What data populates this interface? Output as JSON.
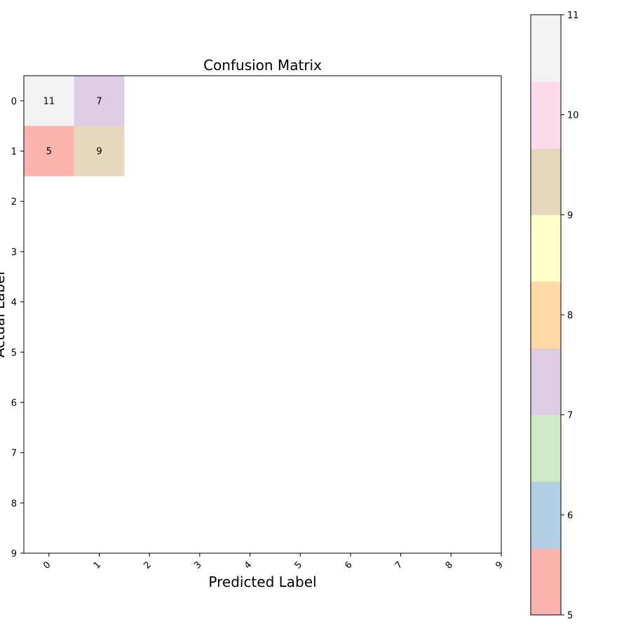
{
  "chart_data": {
    "type": "heatmap",
    "title": "Confusion Matrix",
    "xlabel": "Predicted Label",
    "ylabel": "Actual Label",
    "x_ticks": [
      "0",
      "1",
      "2",
      "3",
      "4",
      "5",
      "6",
      "7",
      "8",
      "9"
    ],
    "y_ticks": [
      "0",
      "1",
      "2",
      "3",
      "4",
      "5",
      "6",
      "7",
      "8",
      "9"
    ],
    "xlim": [
      0,
      9
    ],
    "ylim": [
      0,
      9
    ],
    "x_tick_rotation_deg": 45,
    "cells": [
      {
        "row": 0,
        "col": 0,
        "value": 11,
        "label": "11"
      },
      {
        "row": 0,
        "col": 1,
        "value": 7,
        "label": "7"
      },
      {
        "row": 1,
        "col": 0,
        "value": 5,
        "label": "5"
      },
      {
        "row": 1,
        "col": 1,
        "value": 9,
        "label": "9"
      }
    ],
    "colorbar": {
      "min": 5,
      "max": 11,
      "ticks": [
        "5",
        "6",
        "7",
        "8",
        "9",
        "10",
        "11"
      ],
      "colors": [
        "#fbb4ae",
        "#b3cde3",
        "#ccebc5",
        "#decbe4",
        "#fed9a6",
        "#ffffcc",
        "#e5d8bd",
        "#fddaec",
        "#f2f2f2"
      ]
    },
    "grid": false,
    "legend": "none"
  }
}
